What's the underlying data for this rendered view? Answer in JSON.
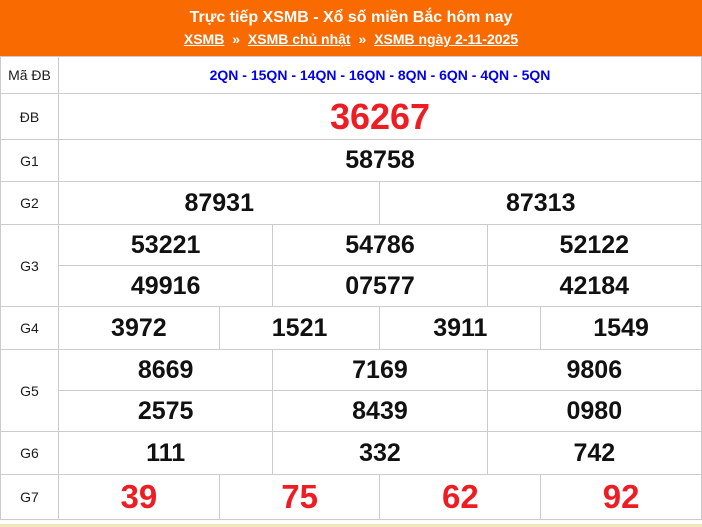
{
  "header": {
    "title": "Trực tiếp XSMB - Xổ số miền Bắc hôm nay",
    "breadcrumb": {
      "separator": "»",
      "links": [
        "XSMB",
        "XSMB chủ nhật",
        "XSMB ngày 2-11-2025"
      ]
    }
  },
  "table": {
    "rows": {
      "ma_db": {
        "label": "Mã ĐB",
        "value": "2QN - 15QN - 14QN - 16QN - 8QN - 6QN - 4QN - 5QN"
      },
      "db": {
        "label": "ĐB",
        "value": "36267"
      },
      "g1": {
        "label": "G1",
        "values": [
          "58758"
        ]
      },
      "g2": {
        "label": "G2",
        "values": [
          "87931",
          "87313"
        ]
      },
      "g3": {
        "label": "G3",
        "row1": [
          "53221",
          "54786",
          "52122"
        ],
        "row2": [
          "49916",
          "07577",
          "42184"
        ]
      },
      "g4": {
        "label": "G4",
        "values": [
          "3972",
          "1521",
          "3911",
          "1549"
        ]
      },
      "g5": {
        "label": "G5",
        "row1": [
          "8669",
          "7169",
          "9806"
        ],
        "row2": [
          "2575",
          "8439",
          "0980"
        ]
      },
      "g6": {
        "label": "G6",
        "values": [
          "111",
          "332",
          "742"
        ]
      },
      "g7": {
        "label": "G7",
        "values": [
          "39",
          "75",
          "62",
          "92"
        ]
      }
    }
  },
  "colors": {
    "header_background": "#f96b00",
    "header_text": "#ffffff",
    "code_text": "#0000ee",
    "special_prize_text": "#ee1d23",
    "g7_text": "#ee1d23",
    "number_text": "#111111",
    "table_border": "#cbcbcb",
    "bottom_strip": "#f1e6be"
  }
}
